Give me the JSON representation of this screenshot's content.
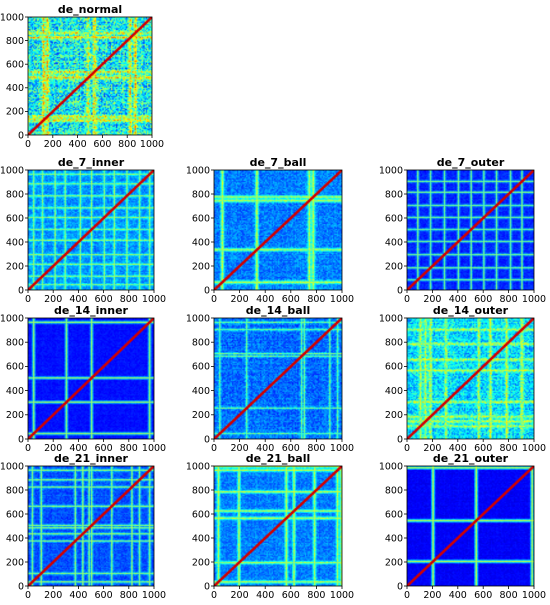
{
  "figure": {
    "colormap": "jet",
    "background": "#ffffff"
  },
  "chart_data": [
    {
      "type": "heatmap",
      "title": "de_normal",
      "xlim": [
        0,
        1000
      ],
      "ylim": [
        0,
        1000
      ],
      "xticks": [
        "0",
        "200",
        "400",
        "600",
        "800",
        "1000"
      ],
      "yticks": [
        "0",
        "200",
        "400",
        "600",
        "800",
        "1000"
      ],
      "base_level": 0.38,
      "noise": 0.16,
      "line_width": 10,
      "lines": [
        120,
        480,
        530,
        860,
        150,
        820
      ],
      "line_level": 0.62
    },
    {
      "type": "heatmap",
      "title": "de_7_inner",
      "xlim": [
        0,
        1000
      ],
      "ylim": [
        0,
        1000
      ],
      "xticks": [
        "0",
        "200",
        "400",
        "600",
        "800",
        "1000"
      ],
      "yticks": [
        "0",
        "200",
        "400",
        "600",
        "800",
        "1000"
      ],
      "base_level": 0.27,
      "noise": 0.05,
      "line_width": 6,
      "lines": [
        40,
        110,
        210,
        290,
        410,
        500,
        600,
        680,
        780,
        880,
        960
      ],
      "line_level": 0.5
    },
    {
      "type": "heatmap",
      "title": "de_7_ball",
      "xlim": [
        0,
        1000
      ],
      "ylim": [
        0,
        1000
      ],
      "xticks": [
        "0",
        "200",
        "400",
        "600",
        "800",
        "1000"
      ],
      "yticks": [
        "0",
        "200",
        "400",
        "600",
        "800",
        "1000"
      ],
      "base_level": 0.25,
      "noise": 0.06,
      "line_width": 9,
      "lines": [
        60,
        740,
        770,
        330
      ],
      "line_level": 0.55
    },
    {
      "type": "heatmap",
      "title": "de_7_outer",
      "xlim": [
        0,
        1000
      ],
      "ylim": [
        0,
        1000
      ],
      "xticks": [
        "0",
        "200",
        "400",
        "600",
        "800",
        "1000"
      ],
      "yticks": [
        "0",
        "200",
        "400",
        "600",
        "800",
        "1000"
      ],
      "base_level": 0.16,
      "noise": 0.03,
      "line_width": 6,
      "lines": [
        80,
        180,
        290,
        400,
        500,
        600,
        700,
        810,
        900
      ],
      "line_level": 0.48
    },
    {
      "type": "heatmap",
      "title": "de_14_inner",
      "xlim": [
        0,
        1000
      ],
      "ylim": [
        0,
        1000
      ],
      "xticks": [
        "0",
        "200",
        "400",
        "600",
        "800",
        "1000"
      ],
      "yticks": [
        "0",
        "200",
        "400",
        "600",
        "800",
        "1000"
      ],
      "base_level": 0.14,
      "noise": 0.02,
      "line_width": 7,
      "lines": [
        500,
        40,
        960,
        300
      ],
      "line_level": 0.52
    },
    {
      "type": "heatmap",
      "title": "de_14_ball",
      "xlim": [
        0,
        1000
      ],
      "ylim": [
        0,
        1000
      ],
      "xticks": [
        "0",
        "200",
        "400",
        "600",
        "800",
        "1000"
      ],
      "yticks": [
        "0",
        "200",
        "400",
        "600",
        "800",
        "1000"
      ],
      "base_level": 0.23,
      "noise": 0.06,
      "line_width": 6,
      "lines": [
        40,
        680,
        700,
        250,
        900,
        960
      ],
      "line_level": 0.46
    },
    {
      "type": "heatmap",
      "title": "de_14_outer",
      "xlim": [
        0,
        1000
      ],
      "ylim": [
        0,
        1000
      ],
      "xticks": [
        "0",
        "200",
        "400",
        "600",
        "800",
        "1000"
      ],
      "yticks": [
        "0",
        "200",
        "400",
        "600",
        "800",
        "1000"
      ],
      "base_level": 0.34,
      "noise": 0.1,
      "line_width": 9,
      "lines": [
        100,
        140,
        180,
        300,
        560,
        650,
        780,
        900
      ],
      "line_level": 0.55
    },
    {
      "type": "heatmap",
      "title": "de_21_inner",
      "xlim": [
        0,
        1000
      ],
      "ylim": [
        0,
        1000
      ],
      "xticks": [
        "0",
        "200",
        "400",
        "600",
        "800",
        "1000"
      ],
      "yticks": [
        "0",
        "200",
        "400",
        "600",
        "800",
        "1000"
      ],
      "base_level": 0.2,
      "noise": 0.04,
      "line_width": 6,
      "lines": [
        30,
        100,
        370,
        430,
        480,
        500,
        660,
        820,
        880,
        960
      ],
      "line_level": 0.5
    },
    {
      "type": "heatmap",
      "title": "de_21_ball",
      "xlim": [
        0,
        1000
      ],
      "ylim": [
        0,
        1000
      ],
      "xticks": [
        "0",
        "200",
        "400",
        "600",
        "800",
        "1000"
      ],
      "yticks": [
        "0",
        "200",
        "400",
        "600",
        "800",
        "1000"
      ],
      "base_level": 0.25,
      "noise": 0.05,
      "line_width": 8,
      "lines": [
        30,
        190,
        560,
        620,
        780,
        960,
        990
      ],
      "line_level": 0.55
    },
    {
      "type": "heatmap",
      "title": "de_21_outer",
      "xlim": [
        0,
        1000
      ],
      "ylim": [
        0,
        1000
      ],
      "xticks": [
        "0",
        "200",
        "400",
        "600",
        "800",
        "1000"
      ],
      "yticks": [
        "0",
        "200",
        "400",
        "600",
        "800",
        "1000"
      ],
      "base_level": 0.12,
      "noise": 0.02,
      "line_width": 8,
      "lines": [
        200,
        540,
        980
      ],
      "line_level": 0.55
    }
  ]
}
